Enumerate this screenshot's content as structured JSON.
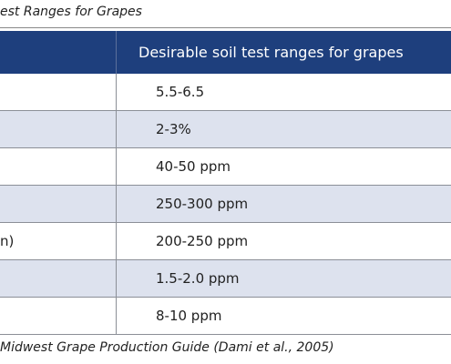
{
  "table": {
    "title": "est Ranges for Grapes",
    "header": "Desirable soil test ranges for grapes",
    "rows": [
      {
        "range": "5.5-6.5"
      },
      {
        "range": "2-3%"
      },
      {
        "range": "40-50 ppm"
      },
      {
        "range": "250-300 ppm"
      },
      {
        "label": "n)",
        "range": "200-250 ppm"
      },
      {
        "range": "1.5-2.0 ppm"
      },
      {
        "range": "8-10 ppm"
      }
    ],
    "source": "Midwest Grape Production Guide (Dami et al., 2005)"
  }
}
